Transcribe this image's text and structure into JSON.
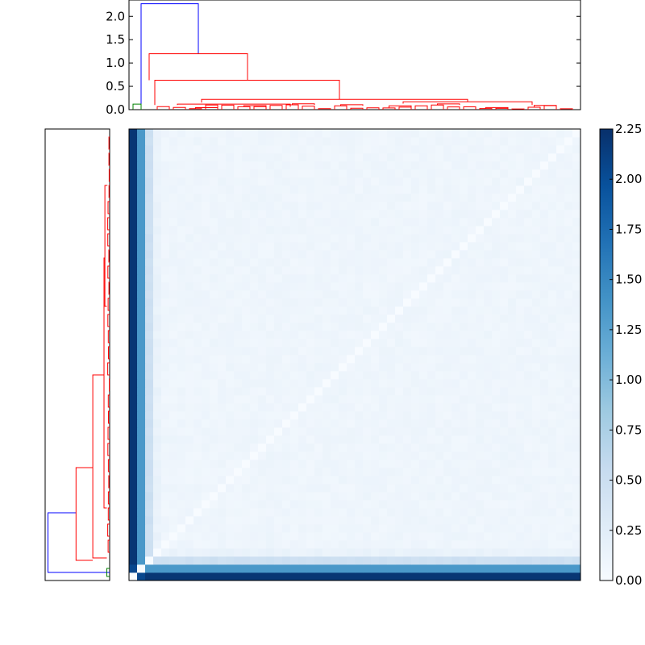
{
  "chart_data": [
    {
      "type": "dendrogram",
      "orientation": "top",
      "ylim": [
        0,
        2.35
      ],
      "yticks": [
        "0.0",
        "0.5",
        "1.0",
        "1.5",
        "2.0"
      ],
      "tick_values": [
        0,
        0.5,
        1.0,
        1.5,
        2.0
      ],
      "n_leaves": 56,
      "colors": {
        "root": "#0000ff",
        "small_cluster": "#008000",
        "main_cluster": "#ff0000"
      },
      "links": [
        {
          "x": [
            1.5,
            1.5,
            8.6,
            8.6
          ],
          "y": [
            0,
            2.27,
            2.27,
            1.2
          ],
          "color": "#0000ff"
        },
        {
          "x": [
            0.5,
            0.5,
            1.5,
            1.5
          ],
          "y": [
            0,
            0.12,
            0.12,
            0
          ],
          "color": "#008000"
        },
        {
          "x": [
            2.5,
            2.5,
            14.7,
            14.7
          ],
          "y": [
            0.63,
            1.2,
            1.2,
            0.63
          ],
          "color": "#ff0000"
        },
        {
          "x": [
            3.2,
            3.2,
            26.1,
            26.1
          ],
          "y": [
            0.1,
            0.63,
            0.63,
            0.22
          ],
          "color": "#ff0000"
        },
        {
          "x": [
            9,
            9,
            42,
            42
          ],
          "y": [
            0.15,
            0.22,
            0.22,
            0.17
          ],
          "color": "#ff0000"
        },
        {
          "x": [
            6,
            6,
            20,
            20
          ],
          "y": [
            0.1,
            0.12,
            0.12,
            0.06
          ],
          "color": "#ff0000"
        },
        {
          "x": [
            34,
            34,
            50,
            50
          ],
          "y": [
            0.13,
            0.17,
            0.17,
            0.1
          ],
          "color": "#ff0000"
        }
      ]
    },
    {
      "type": "dendrogram",
      "orientation": "left",
      "n_leaves": 56,
      "colors": {
        "root": "#0000ff",
        "small_cluster": "#008000",
        "main_cluster": "#ff0000"
      }
    },
    {
      "type": "heatmap",
      "n_rows": 56,
      "n_cols": 56,
      "colormap": "Blues",
      "vmin": 0,
      "vmax": 2.25,
      "description": "pairwise distance matrix ordered by dendrogram leaves",
      "cluster_values": {
        "outlier_a_to_main": 2.2,
        "outlier_b_to_main": 1.35,
        "outlier_a_to_outlier_b": 2.05,
        "within_main_base": 0.07,
        "diagonal": 0
      },
      "colorbar": {
        "ticks": [
          "0.00",
          "0.25",
          "0.50",
          "0.75",
          "1.00",
          "1.25",
          "1.50",
          "1.75",
          "2.00",
          "2.25"
        ],
        "tick_values": [
          0,
          0.25,
          0.5,
          0.75,
          1.0,
          1.25,
          1.5,
          1.75,
          2.0,
          2.25
        ]
      }
    }
  ]
}
